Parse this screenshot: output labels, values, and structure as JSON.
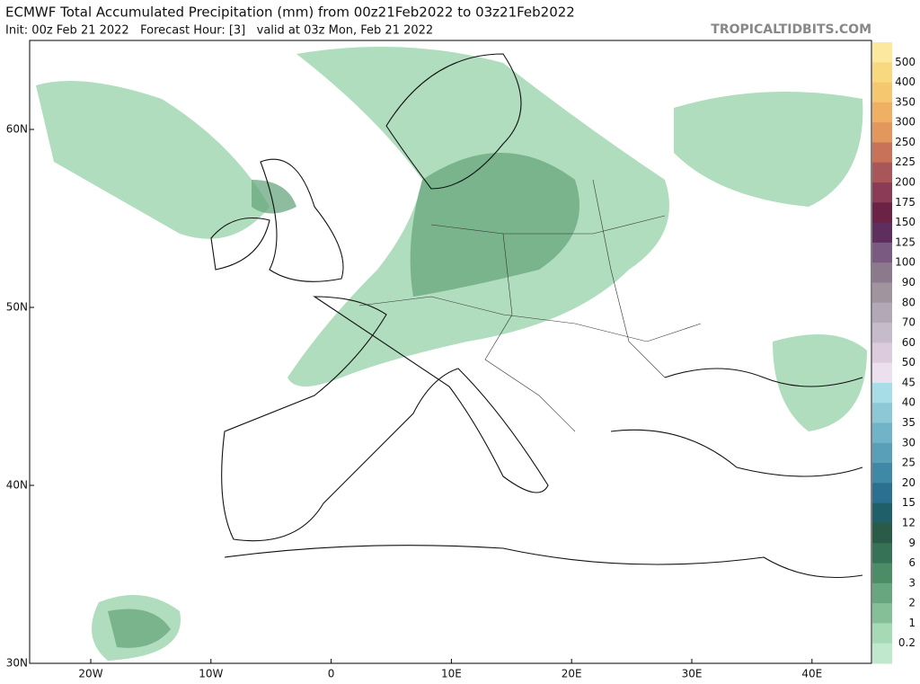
{
  "header": {
    "title": "ECMWF Total Accumulated Precipitation (mm) from 00z21Feb2022 to 03z21Feb2022",
    "subtitle": "Init: 00z Feb 21 2022   Forecast Hour: [3]   valid at 03z Mon, Feb 21 2022",
    "watermark": "TROPICALTIDBITS.COM"
  },
  "map": {
    "lat_labels": [
      "60N",
      "50N",
      "40N",
      "30N"
    ],
    "lon_labels": [
      "20W",
      "10W",
      "0",
      "10E",
      "20E",
      "30E",
      "40E"
    ]
  },
  "colorbar": {
    "labels": [
      "500",
      "400",
      "350",
      "300",
      "250",
      "225",
      "200",
      "175",
      "150",
      "125",
      "100",
      "90",
      "80",
      "70",
      "60",
      "50",
      "45",
      "40",
      "35",
      "30",
      "25",
      "20",
      "15",
      "12",
      "9",
      "6",
      "3",
      "2",
      "1",
      "0.2"
    ],
    "colors": [
      "#fde89f",
      "#f9d980",
      "#f5c870",
      "#efb064",
      "#e2985c",
      "#c77259",
      "#a9565a",
      "#8b3b55",
      "#6b2244",
      "#5e2f5e",
      "#7a5a80",
      "#8c7a8c",
      "#a0949f",
      "#b3a8b6",
      "#c6bbcb",
      "#dccbdc",
      "#ecdfee",
      "#a7dde6",
      "#8cc8d6",
      "#72b4c7",
      "#5a9fb8",
      "#3f88a6",
      "#2b7090",
      "#1f5f6a",
      "#2a5a48",
      "#367356",
      "#4c8d68",
      "#67a67e",
      "#85bf97",
      "#a6d9b6",
      "#bfe8cc"
    ]
  }
}
